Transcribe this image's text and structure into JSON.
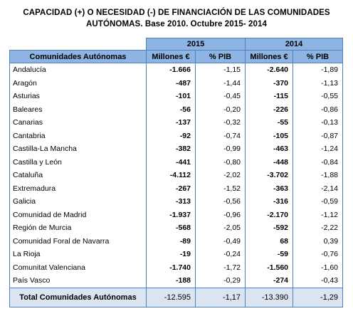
{
  "title_line1": "CAPACIDAD (+) O NECESIDAD (-) DE FINANCIACIÓN DE LAS COMUNIDADES",
  "title_line2": "AUTÓNOMAS. Base 2010. Octubre 2015- 2014",
  "years": [
    "2015",
    "2014"
  ],
  "headers": {
    "region": "Comunidades Autónomas",
    "millones": "Millones €",
    "pib": "% PIB"
  },
  "rows": [
    {
      "name": "Andalucía",
      "m2015": "-1.666",
      "p2015": "-1,15",
      "m2014": "-2.640",
      "p2014": "-1,89"
    },
    {
      "name": "Aragón",
      "m2015": "-487",
      "p2015": "-1,44",
      "m2014": "-370",
      "p2014": "-1,13"
    },
    {
      "name": "Asturias",
      "m2015": "-101",
      "p2015": "-0,45",
      "m2014": "-115",
      "p2014": "-0,55"
    },
    {
      "name": "Baleares",
      "m2015": "-56",
      "p2015": "-0,20",
      "m2014": "-226",
      "p2014": "-0,86"
    },
    {
      "name": "Canarias",
      "m2015": "-137",
      "p2015": "-0,32",
      "m2014": "-55",
      "p2014": "-0,13"
    },
    {
      "name": "Cantabria",
      "m2015": "-92",
      "p2015": "-0,74",
      "m2014": "-105",
      "p2014": "-0,87"
    },
    {
      "name": "Castilla-La Mancha",
      "m2015": "-382",
      "p2015": "-0,99",
      "m2014": "-463",
      "p2014": "-1,24"
    },
    {
      "name": "Castilla y León",
      "m2015": "-441",
      "p2015": "-0,80",
      "m2014": "-448",
      "p2014": "-0,84"
    },
    {
      "name": "Cataluña",
      "m2015": "-4.112",
      "p2015": "-2,02",
      "m2014": "-3.702",
      "p2014": "-1,88"
    },
    {
      "name": "Extremadura",
      "m2015": "-267",
      "p2015": "-1,52",
      "m2014": "-363",
      "p2014": "-2,14"
    },
    {
      "name": "Galicia",
      "m2015": "-313",
      "p2015": "-0,56",
      "m2014": "-316",
      "p2014": "-0,59"
    },
    {
      "name": "Comunidad de Madrid",
      "m2015": "-1.937",
      "p2015": "-0,96",
      "m2014": "-2.170",
      "p2014": "-1,12"
    },
    {
      "name": "Región de Murcia",
      "m2015": "-568",
      "p2015": "-2,05",
      "m2014": "-592",
      "p2014": "-2,22"
    },
    {
      "name": "Comunidad Foral de Navarra",
      "m2015": "-89",
      "p2015": "-0,49",
      "m2014": "68",
      "p2014": "0,39"
    },
    {
      "name": "La Rioja",
      "m2015": "-19",
      "p2015": "-0,24",
      "m2014": "-59",
      "p2014": "-0,76"
    },
    {
      "name": "Comunitat Valenciana",
      "m2015": "-1.740",
      "p2015": "-1,72",
      "m2014": "-1.560",
      "p2014": "-1,60"
    },
    {
      "name": "País Vasco",
      "m2015": "-188",
      "p2015": "-0,29",
      "m2014": "-274",
      "p2014": "-0,43"
    }
  ],
  "total": {
    "name": "Total Comunidades Autónomas",
    "m2015": "-12.595",
    "p2015": "-1,17",
    "m2014": "-13.390",
    "p2014": "-1,29"
  },
  "colors": {
    "header_bg": "#8db4e2",
    "border": "#4f81bd",
    "total_bg": "#dbe5f1"
  }
}
